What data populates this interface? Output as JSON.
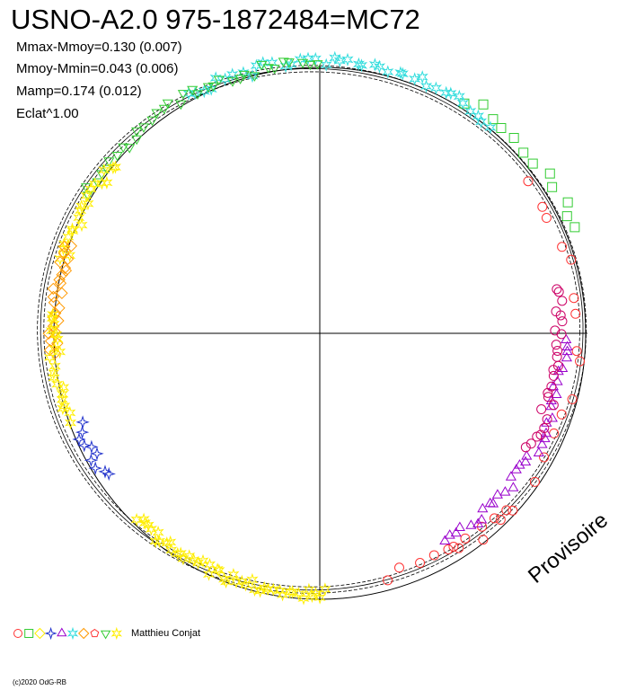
{
  "header": {
    "title": "USNO-A2.0 975-1872484=MC72",
    "stats": [
      "Mmax-Mmoy=0.130 (0.007)",
      "Mmoy-Mmin=0.043 (0.006)",
      "Mamp=0.174 (0.012)",
      "Eclat^1.00"
    ]
  },
  "legend": {
    "observer": "Matthieu Conjat",
    "symbols": [
      {
        "shape": "circle",
        "color": "#ff3333"
      },
      {
        "shape": "square",
        "color": "#33cc33"
      },
      {
        "shape": "diamond",
        "color": "#ffee00"
      },
      {
        "shape": "cross-star",
        "color": "#2233cc"
      },
      {
        "shape": "triangle-up",
        "color": "#9900cc"
      },
      {
        "shape": "star6",
        "color": "#33dddd"
      },
      {
        "shape": "diamond",
        "color": "#ff9900"
      },
      {
        "shape": "pentagon",
        "color": "#ff3333"
      },
      {
        "shape": "triangle-down",
        "color": "#33cc33"
      },
      {
        "shape": "star6",
        "color": "#ffee00"
      }
    ]
  },
  "watermark": "Provisoire",
  "credit": "(c)2020 OdG-RB",
  "chart_data": {
    "type": "scatter",
    "coordinate_system": "polar phase plot",
    "grid": "two crossing axes through center",
    "reference_circle_radius": 1.0,
    "fit_curve": {
      "description": "light-curve fit with confidence envelope",
      "radius_function_harmonics": [
        {
          "k": 1,
          "cos": -0.03,
          "sin": 0.015
        },
        {
          "k": 2,
          "cos": 0.02,
          "sin": 0.0
        }
      ],
      "envelope_offset": 0.012
    },
    "groups": [
      {
        "shape": "circle",
        "color": "#ff3333",
        "angle_range_deg": [
          -60,
          40
        ],
        "radius_mean": 0.97,
        "count": 18
      },
      {
        "shape": "square",
        "color": "#33cc33",
        "angle_range_deg": [
          20,
          60
        ],
        "radius_mean": 1.04,
        "count": 12
      },
      {
        "shape": "star6",
        "color": "#33dddd",
        "angle_range_deg": [
          50,
          120
        ],
        "radius_mean": 1.02,
        "count": 40
      },
      {
        "shape": "triangle-down",
        "color": "#33cc33",
        "angle_range_deg": [
          90,
          150
        ],
        "radius_mean": 1.02,
        "count": 35
      },
      {
        "shape": "star6",
        "color": "#ffee00",
        "angle_range_deg": [
          140,
          165
        ],
        "radius_mean": 1.0,
        "count": 20
      },
      {
        "shape": "diamond",
        "color": "#ff9900",
        "angle_range_deg": [
          160,
          185
        ],
        "radius_mean": 1.0,
        "count": 25
      },
      {
        "shape": "star6",
        "color": "#ffee00",
        "angle_range_deg": [
          175,
          200
        ],
        "radius_mean": 1.0,
        "count": 20
      },
      {
        "shape": "cross-star",
        "color": "#2233cc",
        "angle_range_deg": [
          200,
          215
        ],
        "radius_mean": 0.97,
        "count": 10
      },
      {
        "shape": "star6",
        "color": "#ffee00",
        "angle_range_deg": [
          225,
          272
        ],
        "radius_mean": 0.98,
        "count": 45
      },
      {
        "shape": "circle",
        "color": "#ff3333",
        "angle_range_deg": [
          285,
          318
        ],
        "radius_mean": 0.95,
        "count": 10
      },
      {
        "shape": "triangle-up",
        "color": "#9900cc",
        "angle_range_deg": [
          300,
          360
        ],
        "radius_mean": 0.92,
        "count": 35
      },
      {
        "shape": "circle",
        "color": "#cc0066",
        "angle_range_deg": [
          330,
          372
        ],
        "radius_mean": 0.9,
        "count": 25
      }
    ]
  }
}
